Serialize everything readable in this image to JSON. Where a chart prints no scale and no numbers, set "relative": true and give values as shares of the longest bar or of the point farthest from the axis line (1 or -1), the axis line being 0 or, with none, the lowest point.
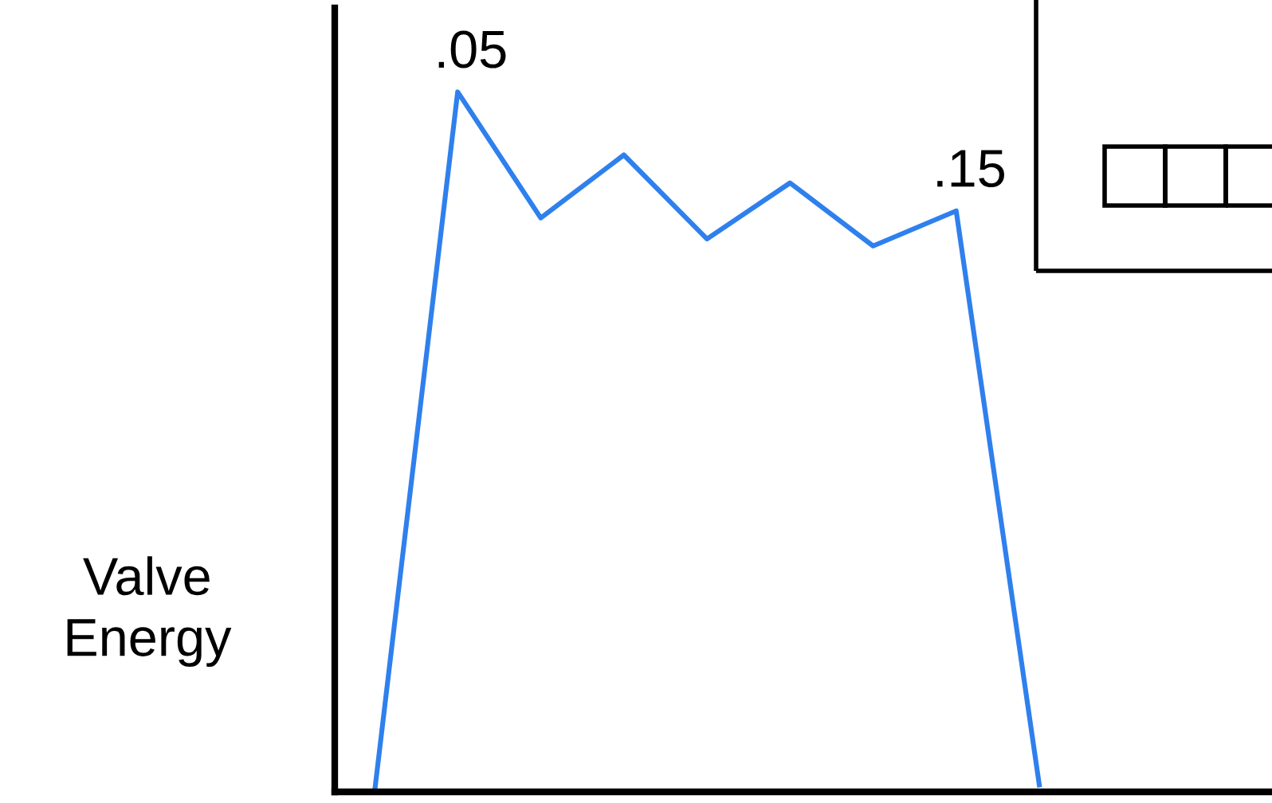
{
  "chart_data": {
    "type": "line",
    "relative": true,
    "ylabel": "Valve Energy",
    "categories": [
      null,
      null,
      null,
      null,
      null,
      null,
      null,
      null,
      null
    ],
    "series": [
      {
        "color": "#2f80ed",
        "values": [
          0,
          1,
          0.82,
          0.91,
          0.79,
          0.87,
          0.78,
          0.83,
          0.01
        ]
      }
    ],
    "annotations": [
      ".05",
      ".15"
    ],
    "marker": "none",
    "line_style": "solid",
    "grid": false,
    "legend": false
  }
}
